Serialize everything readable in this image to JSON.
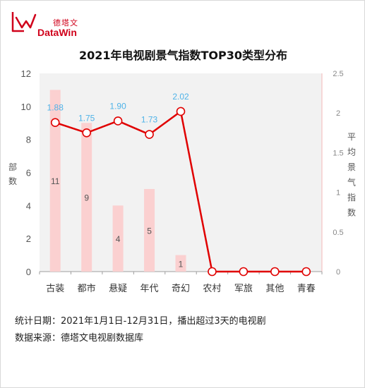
{
  "brand": {
    "name_cn": "德塔文",
    "name_en": "DataWin",
    "color": "#d0021b"
  },
  "colors": {
    "bar": "#fbd0d0",
    "line": "#e00000",
    "point_label": "#4fb3e8",
    "axis_text": "#555555",
    "plot_bg": "#f2f2f2"
  },
  "chart_data": {
    "type": "bar+line",
    "title": "2021年电视剧景气指数TOP30类型分布",
    "categories": [
      "古装",
      "都市",
      "悬疑",
      "年代",
      "奇幻",
      "农村",
      "军旅",
      "其他",
      "青春"
    ],
    "series": [
      {
        "name": "部数",
        "type": "bar",
        "axis": "left",
        "values": [
          11,
          9,
          4,
          5,
          1,
          0,
          0,
          0,
          0
        ],
        "labels": [
          "11",
          "9",
          "4",
          "5",
          "1",
          "",
          "",
          "",
          ""
        ]
      },
      {
        "name": "平均景气指数",
        "type": "line",
        "axis": "right",
        "values": [
          1.88,
          1.75,
          1.9,
          1.73,
          2.02,
          0,
          0,
          0,
          0
        ],
        "labels": [
          "1.88",
          "1.75",
          "1.90",
          "1.73",
          "2.02",
          "",
          "",
          "",
          ""
        ]
      }
    ],
    "y_left": {
      "label": "部数",
      "range": [
        0,
        12
      ],
      "ticks": [
        0,
        2,
        4,
        6,
        8,
        10,
        12
      ]
    },
    "y_right": {
      "label": "平均景气指数",
      "range": [
        0,
        2.5
      ],
      "ticks": [
        "0",
        "0.5",
        "1",
        "1.5",
        "2",
        "2.5"
      ]
    },
    "grid": false
  },
  "footnotes": [
    "统计日期：2021年1月1日-12月31日，播出超过3天的电视剧",
    "数据来源：德塔文电视剧数据库"
  ]
}
